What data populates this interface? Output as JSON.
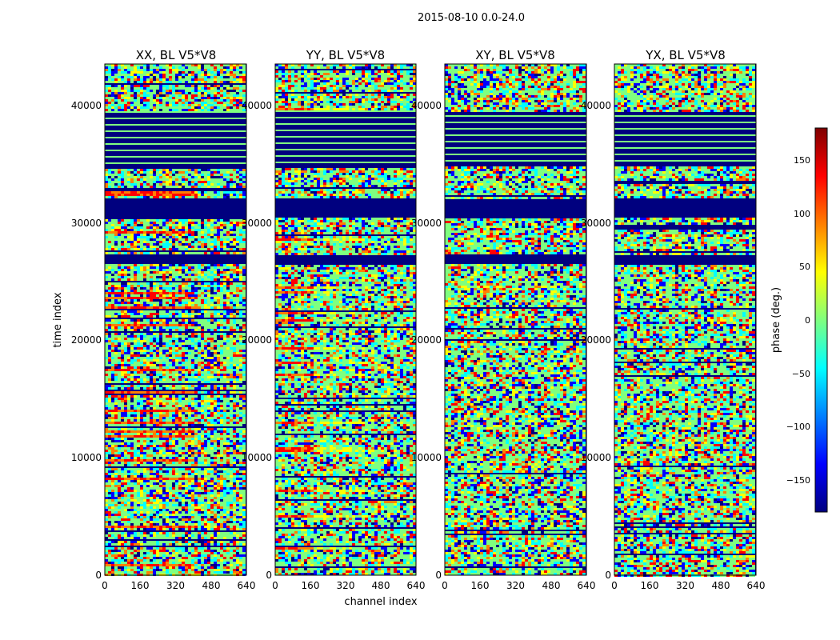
{
  "figure_title": "2015-08-10 0.0-24.0",
  "colors": {
    "background_fill": "#00007f",
    "jet": [
      "#00007f",
      "#0000ff",
      "#007fff",
      "#00ffff",
      "#7fff7f",
      "#ffff00",
      "#ff7f00",
      "#ff0000",
      "#7f0000"
    ]
  },
  "chart_data": {
    "type": "heatmap",
    "panels": [
      {
        "title": "XX, BL V5*V8"
      },
      {
        "title": "YY, BL V5*V8"
      },
      {
        "title": "XY, BL V5*V8"
      },
      {
        "title": "YX, BL V5*V8"
      }
    ],
    "xlabel": "channel index",
    "ylabel": "time index",
    "x_ticks": [
      "0",
      "160",
      "320",
      "480",
      "640"
    ],
    "y_ticks": [
      "0",
      "10000",
      "20000",
      "30000",
      "40000"
    ],
    "xlim": [
      0,
      640
    ],
    "ylim": [
      0,
      43500
    ],
    "colorbar": {
      "label": "phase (deg.)",
      "range": [
        -180,
        180
      ],
      "ticks": [
        "150",
        "100",
        "50",
        "0",
        "−50",
        "−100",
        "−150"
      ]
    }
  }
}
